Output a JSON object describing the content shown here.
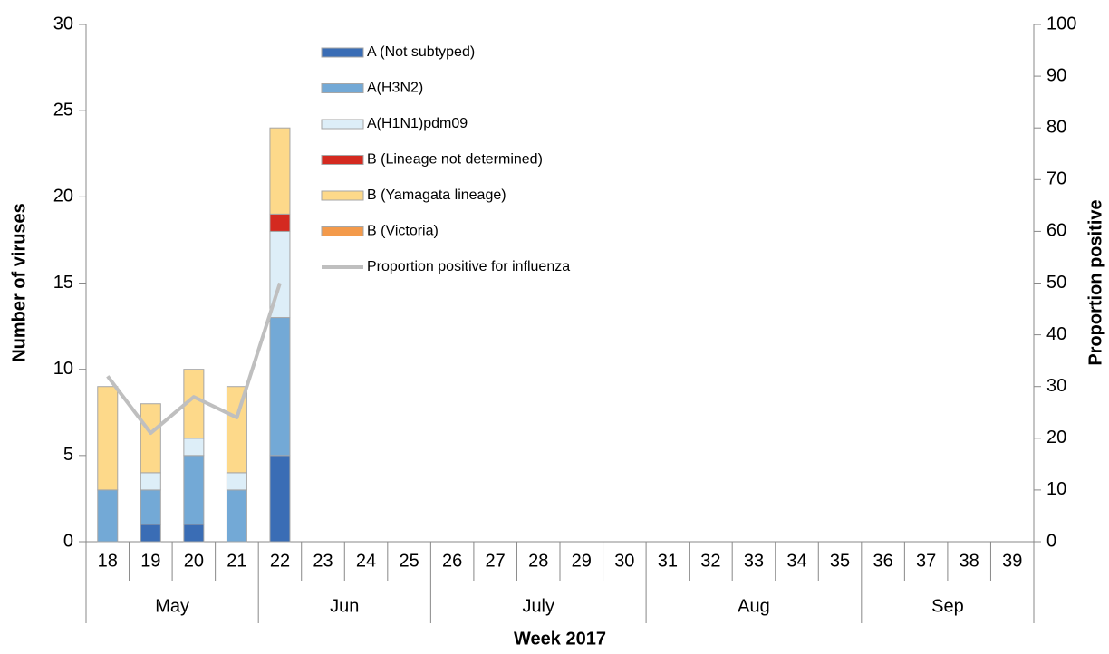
{
  "chart_data": {
    "type": "bar",
    "stacked": true,
    "x_title": "Week 2017",
    "y_title": "Number of viruses",
    "y2_title": "Proportion positive",
    "categories": [
      "18",
      "19",
      "20",
      "21",
      "22",
      "23",
      "24",
      "25",
      "26",
      "27",
      "28",
      "29",
      "30",
      "31",
      "32",
      "33",
      "34",
      "35",
      "36",
      "37",
      "38",
      "39"
    ],
    "x_groups": [
      {
        "label": "May",
        "span": [
          0,
          3
        ]
      },
      {
        "label": "Jun",
        "span": [
          4,
          7
        ]
      },
      {
        "label": "July",
        "span": [
          8,
          12
        ]
      },
      {
        "label": "Aug",
        "span": [
          13,
          17
        ]
      },
      {
        "label": "Sep",
        "span": [
          18,
          21
        ]
      }
    ],
    "series": [
      {
        "name": "A (Not subtyped)",
        "color": "#3a6db5",
        "values": [
          0,
          1,
          1,
          0,
          5,
          null,
          null,
          null,
          null,
          null,
          null,
          null,
          null,
          null,
          null,
          null,
          null,
          null,
          null,
          null,
          null,
          null
        ]
      },
      {
        "name": "A(H3N2)",
        "color": "#73a9d6",
        "values": [
          3,
          2,
          4,
          3,
          8,
          null,
          null,
          null,
          null,
          null,
          null,
          null,
          null,
          null,
          null,
          null,
          null,
          null,
          null,
          null,
          null,
          null
        ]
      },
      {
        "name": "A(H1N1)pdm09",
        "color": "#ddeef8",
        "values": [
          0,
          1,
          1,
          1,
          5,
          null,
          null,
          null,
          null,
          null,
          null,
          null,
          null,
          null,
          null,
          null,
          null,
          null,
          null,
          null,
          null,
          null
        ]
      },
      {
        "name": "B (Lineage not determined)",
        "color": "#d42a20",
        "values": [
          0,
          0,
          0,
          0,
          1,
          null,
          null,
          null,
          null,
          null,
          null,
          null,
          null,
          null,
          null,
          null,
          null,
          null,
          null,
          null,
          null,
          null
        ]
      },
      {
        "name": "B (Yamagata lineage)",
        "color": "#fdd98a",
        "values": [
          6,
          4,
          4,
          5,
          5,
          null,
          null,
          null,
          null,
          null,
          null,
          null,
          null,
          null,
          null,
          null,
          null,
          null,
          null,
          null,
          null,
          null
        ]
      },
      {
        "name": "B (Victoria)",
        "color": "#f39a4b",
        "values": [
          0,
          0,
          0,
          0,
          0,
          null,
          null,
          null,
          null,
          null,
          null,
          null,
          null,
          null,
          null,
          null,
          null,
          null,
          null,
          null,
          null,
          null
        ]
      },
      {
        "name": "Proportion positive for influenza",
        "color": "#bfbfbf",
        "type": "line",
        "axis": "y2",
        "values": [
          32,
          21,
          28,
          24,
          50,
          null,
          null,
          null,
          null,
          null,
          null,
          null,
          null,
          null,
          null,
          null,
          null,
          null,
          null,
          null,
          null,
          null
        ]
      }
    ],
    "ylim": [
      0,
      30
    ],
    "yticks": [
      0,
      5,
      10,
      15,
      20,
      25,
      30
    ],
    "y2lim": [
      0,
      100
    ],
    "y2ticks": [
      0,
      10,
      20,
      30,
      40,
      50,
      60,
      70,
      80,
      90,
      100
    ]
  }
}
